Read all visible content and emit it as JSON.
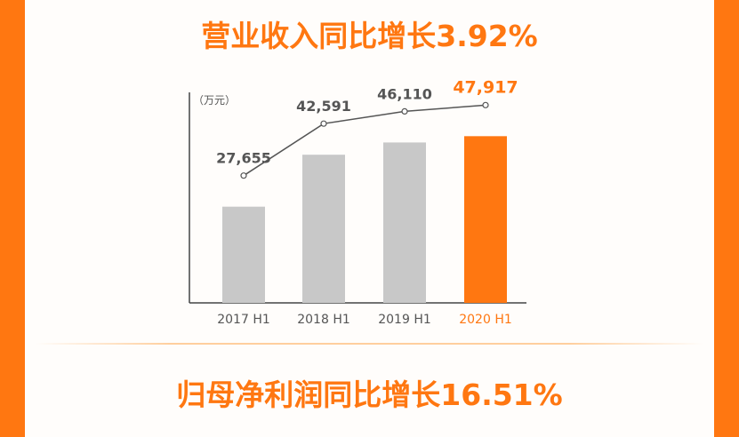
{
  "headline_revenue": "营业收入同比增长3.92%",
  "headline_profit": "归母净利润同比增长16.51%",
  "chart_data": {
    "type": "bar",
    "unit_label": "（万元）",
    "categories": [
      "2017 H1",
      "2018 H1",
      "2019 H1",
      "2020 H1"
    ],
    "values": [
      27655,
      42591,
      46110,
      47917
    ],
    "value_labels": [
      "27,655",
      "42,591",
      "46,110",
      "47,917"
    ],
    "line_overlay": true,
    "ylim": [
      0,
      60000
    ],
    "grid": false,
    "colors": {
      "bar_default": "#c8c8c8",
      "bar_highlight": "#ff7711",
      "line": "#555555",
      "label_default": "#555555",
      "label_highlight": "#ff7711",
      "axis": "#444444"
    }
  },
  "colors": {
    "accent": "#ff7711"
  }
}
